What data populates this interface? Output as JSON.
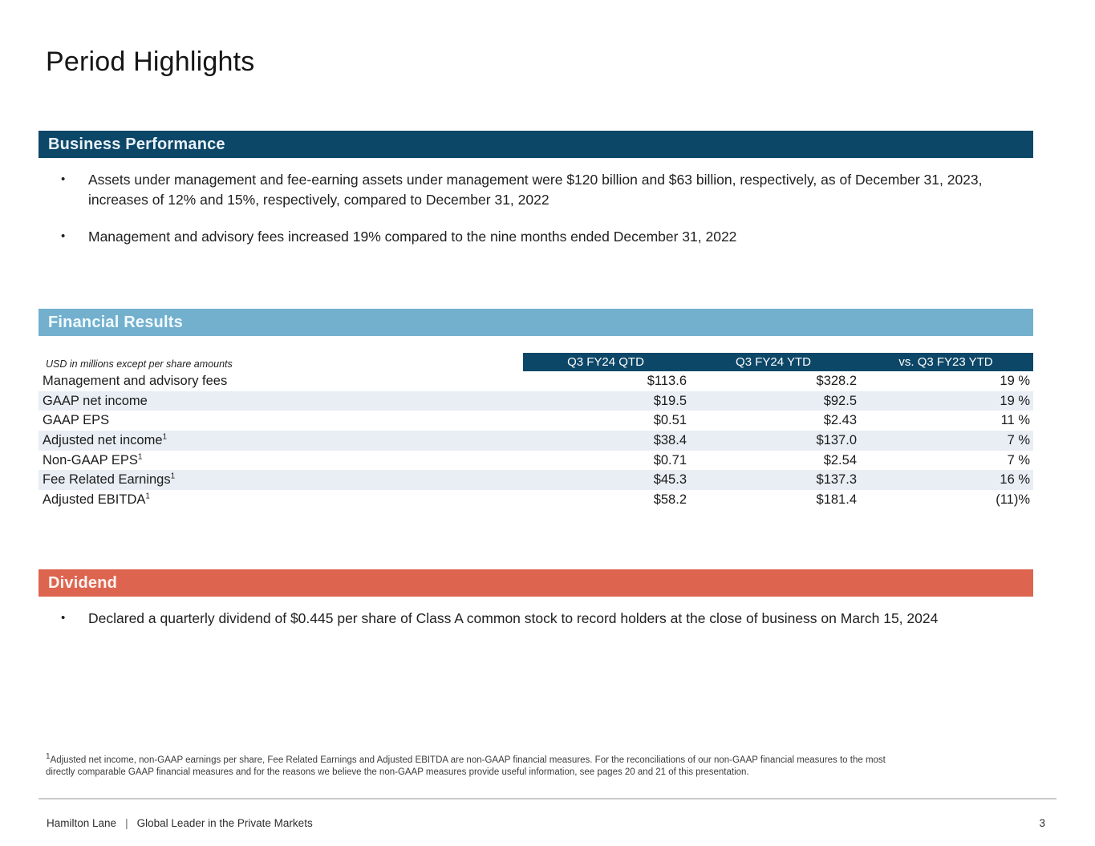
{
  "slide": {
    "title": "Period Highlights"
  },
  "glyphs": {
    "bullet": "•",
    "separator": "|"
  },
  "colors": {
    "navy_band": "#0d4768",
    "light_blue_band": "#72b0ce",
    "coral_band": "#dd6550",
    "row_shade": "#e8eef4",
    "band_text": "#e9f2f8"
  },
  "business": {
    "heading": "Business Performance",
    "bullets": [
      "Assets under management and fee-earning assets under management were $120 billion and $63 billion, respectively, as of December 31, 2023, increases of 12% and 15%, respectively, compared to December 31, 2022",
      "Management and advisory fees increased 19% compared to the nine months ended December 31, 2022"
    ]
  },
  "financial": {
    "heading": "Financial Results",
    "units_note": "USD in millions except per share amounts",
    "columns": [
      "Q3 FY24 QTD",
      "Q3 FY24 YTD",
      "vs. Q3 FY23 YTD"
    ],
    "rows": [
      {
        "label": "Management and advisory fees",
        "sup": "",
        "qtd": "$113.6",
        "ytd": "$328.2",
        "vs": "19 %",
        "shaded": false
      },
      {
        "label": "GAAP net income",
        "sup": "",
        "qtd": "$19.5",
        "ytd": "$92.5",
        "vs": "19 %",
        "shaded": true
      },
      {
        "label": "GAAP EPS",
        "sup": "",
        "qtd": "$0.51",
        "ytd": "$2.43",
        "vs": "11 %",
        "shaded": false
      },
      {
        "label": "Adjusted net income",
        "sup": "1",
        "qtd": "$38.4",
        "ytd": "$137.0",
        "vs": "7 %",
        "shaded": true
      },
      {
        "label": "Non-GAAP EPS",
        "sup": "1",
        "qtd": "$0.71",
        "ytd": "$2.54",
        "vs": "7 %",
        "shaded": false
      },
      {
        "label": "Fee Related Earnings",
        "sup": "1",
        "qtd": "$45.3",
        "ytd": "$137.3",
        "vs": "16 %",
        "shaded": true
      },
      {
        "label": "Adjusted EBITDA",
        "sup": "1",
        "qtd": "$58.2",
        "ytd": "$181.4",
        "vs": "(11)%",
        "shaded": false
      }
    ]
  },
  "dividend": {
    "heading": "Dividend",
    "bullets": [
      "Declared a quarterly dividend of $0.445 per share of Class A common stock to record holders at the close of business on March 15, 2024"
    ]
  },
  "footnote": {
    "sup": "1",
    "lines": [
      "Adjusted net income, non-GAAP earnings per share, Fee Related Earnings and Adjusted EBITDA are non-GAAP financial measures. For the reconciliations of our non-GAAP financial measures to the most",
      "directly comparable GAAP financial measures and for the reasons we believe the non-GAAP measures provide useful information, see pages 20 and 21 of this presentation."
    ]
  },
  "footer": {
    "brand": "Hamilton Lane",
    "separator": "|",
    "tagline": "Global Leader in the Private Markets",
    "page_number": "3"
  }
}
